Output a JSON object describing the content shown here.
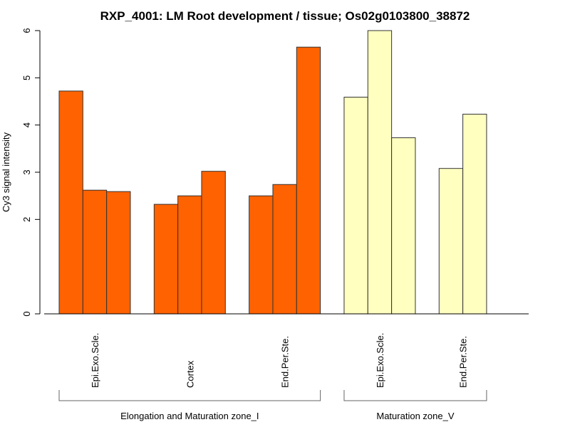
{
  "chart_data": {
    "type": "bar",
    "title": "RXP_4001: LM Root development / tissue; Os02g0103800_38872",
    "xlabel": "",
    "ylabel": "Cy3 signal intensity",
    "ylim": [
      0,
      6
    ],
    "yticks": [
      0,
      2,
      3,
      4,
      5,
      6
    ],
    "grid": false,
    "legend": "none",
    "groups": [
      {
        "name": "Elongation and Maturation zone_I",
        "color": "#FF6200",
        "categories": [
          {
            "label": "Epi.Exo.Scle.",
            "values": [
              4.72,
              2.62,
              2.59
            ]
          },
          {
            "label": "Cortex",
            "values": [
              2.32,
              2.5,
              3.02
            ]
          },
          {
            "label": "End.Per.Ste.",
            "values": [
              2.5,
              2.74,
              5.65
            ]
          }
        ]
      },
      {
        "name": "Maturation zone_V",
        "color": "#FFFFC0",
        "categories": [
          {
            "label": "Epi.Exo.Scle.",
            "values": [
              4.59,
              6.0,
              3.73
            ]
          },
          {
            "label": "End.Per.Ste.",
            "values": [
              3.08,
              4.23
            ]
          }
        ]
      }
    ]
  }
}
